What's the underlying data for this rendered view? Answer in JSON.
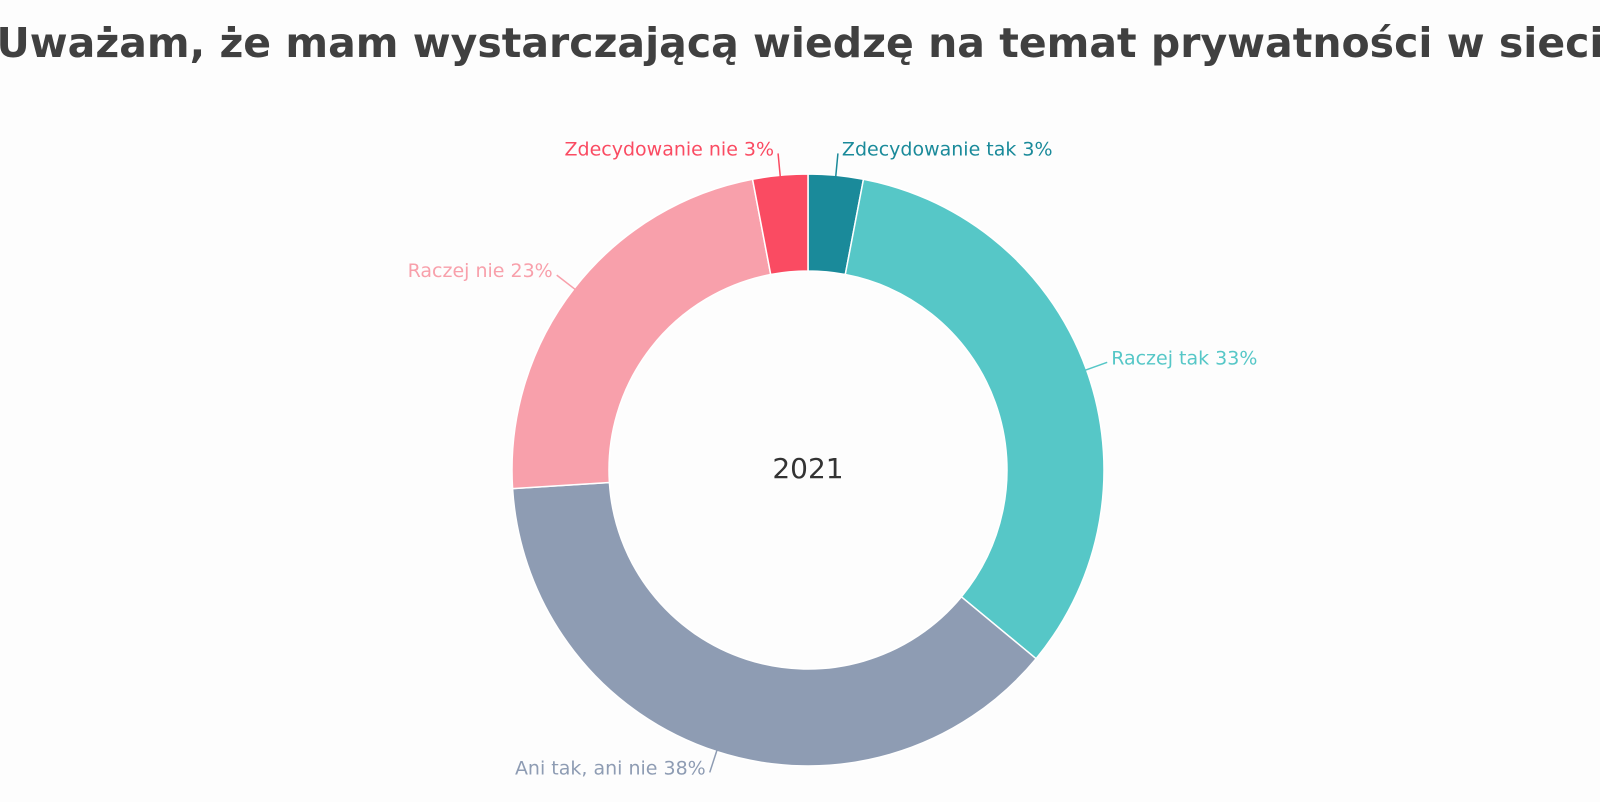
{
  "chart_data": {
    "type": "donut",
    "title": "Uważam, że mam wystarczającą wiedzę na temat prywatności w sieci",
    "center_label": "2021",
    "categories": [
      "Zdecydowanie tak",
      "Raczej tak",
      "Ani tak, ani nie",
      "Raczej nie",
      "Zdecydowanie nie"
    ],
    "values": [
      3,
      33,
      38,
      23,
      3
    ],
    "value_labels": [
      "3%",
      "33%",
      "38%",
      "23%",
      "3%"
    ],
    "colors": [
      "#1a8a9a",
      "#56c7c7",
      "#8e9cb3",
      "#f8a0ab",
      "#fa4b62"
    ]
  }
}
